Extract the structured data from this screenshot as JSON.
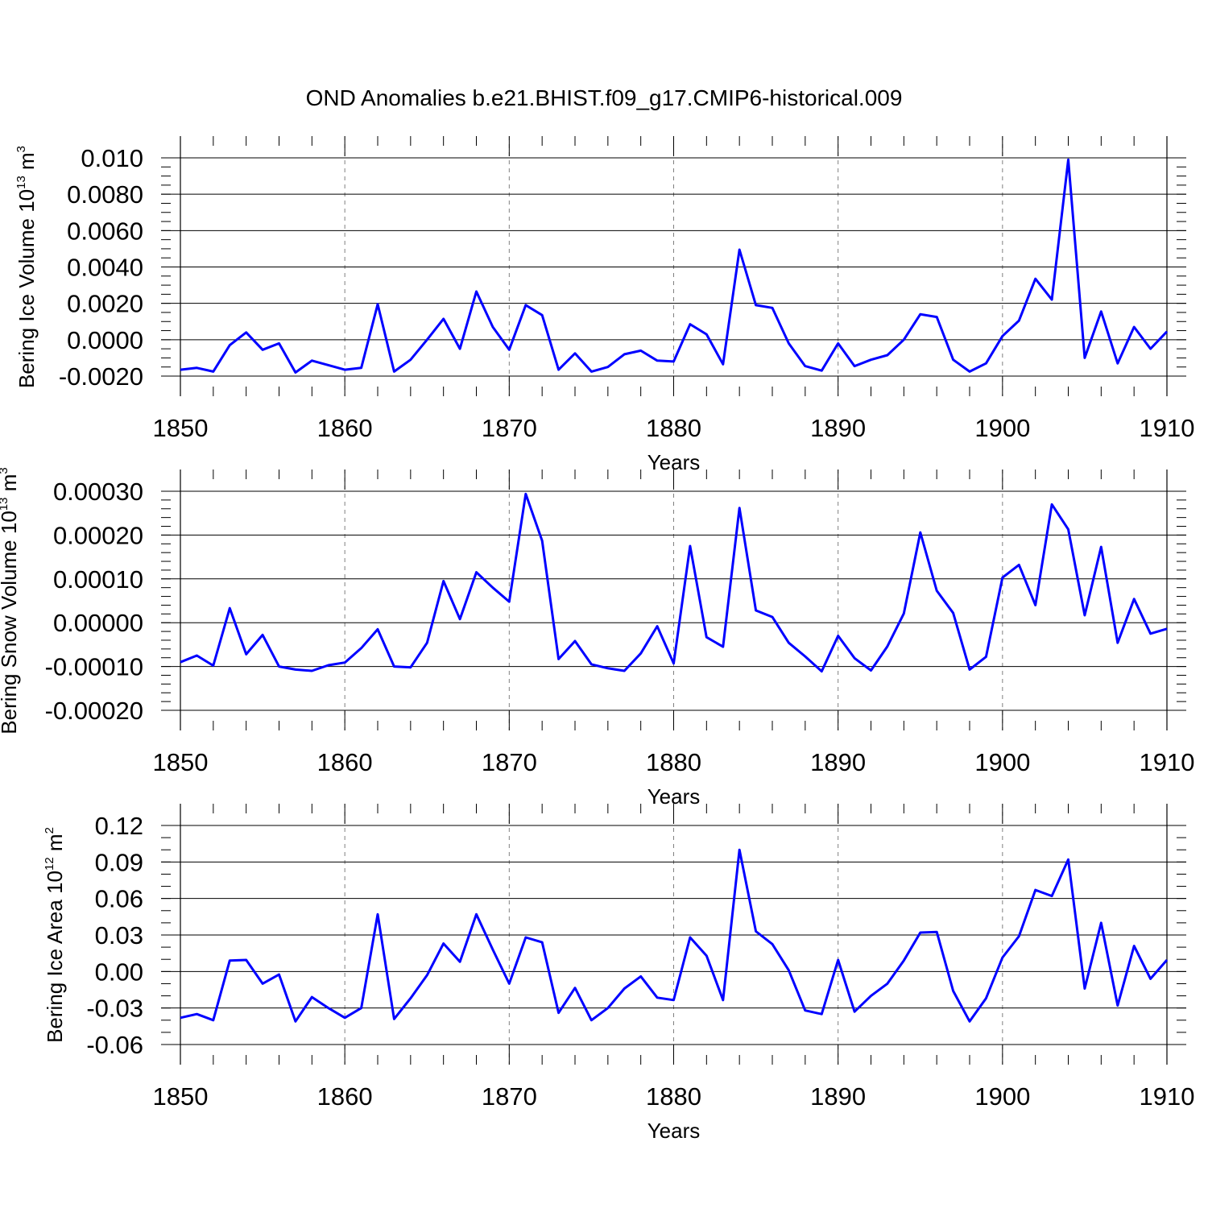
{
  "title": "OND Anomalies b.e21.BHIST.f09_g17.CMIP6-historical.009",
  "colors": {
    "line": "#0000ff",
    "axis": "#000000",
    "grid": "#808080"
  },
  "chart_data": [
    {
      "type": "line",
      "name": "ice-volume",
      "ylabel": {
        "text": "Bering Ice Volume 10",
        "exp": "13",
        "unit": " m",
        "unit_exp": "3"
      },
      "xlabel": "Years",
      "xlim": [
        1850,
        1910
      ],
      "ylim": [
        -0.002,
        0.01
      ],
      "x_ticks": [
        1850,
        1860,
        1870,
        1880,
        1890,
        1900,
        1910
      ],
      "x_tick_labels": [
        "1850",
        "1860",
        "1870",
        "1880",
        "1890",
        "1900",
        "1910"
      ],
      "y_ticks": [
        -0.002,
        0.0,
        0.002,
        0.004,
        0.006,
        0.008,
        0.01
      ],
      "y_tick_labels": [
        "-0.0020",
        "0.0000",
        "0.0020",
        "0.0040",
        "0.0060",
        "0.0080",
        "0.010"
      ],
      "y_minor_step": 0.0005,
      "grid": "dashed vertical",
      "x": [
        1850,
        1851,
        1852,
        1853,
        1854,
        1855,
        1856,
        1857,
        1858,
        1859,
        1860,
        1861,
        1862,
        1863,
        1864,
        1865,
        1866,
        1867,
        1868,
        1869,
        1870,
        1871,
        1872,
        1873,
        1874,
        1875,
        1876,
        1877,
        1878,
        1879,
        1880,
        1881,
        1882,
        1883,
        1884,
        1885,
        1886,
        1887,
        1888,
        1889,
        1890,
        1891,
        1892,
        1893,
        1894,
        1895,
        1896,
        1897,
        1898,
        1899,
        1900,
        1901,
        1902,
        1903,
        1904,
        1905,
        1906,
        1907,
        1908,
        1909,
        1910
      ],
      "values": [
        -0.00165,
        -0.00155,
        -0.00175,
        -0.0003,
        0.0004,
        -0.00055,
        -0.0002,
        -0.0018,
        -0.00115,
        -0.0014,
        -0.00165,
        -0.00155,
        0.00195,
        -0.00175,
        -0.0011,
        0.0,
        0.00115,
        -0.0005,
        0.00265,
        0.0007,
        -0.00055,
        0.0019,
        0.00135,
        -0.00165,
        -0.00075,
        -0.00175,
        -0.0015,
        -0.0008,
        -0.0006,
        -0.00115,
        -0.0012,
        0.00085,
        0.0003,
        -0.00135,
        0.00495,
        0.0019,
        0.00175,
        -0.0002,
        -0.00145,
        -0.0017,
        -0.0002,
        -0.00145,
        -0.0011,
        -0.00085,
        0.0,
        0.0014,
        0.00125,
        -0.0011,
        -0.00175,
        -0.0013,
        0.0002,
        0.00105,
        0.00335,
        0.0022,
        0.0099,
        -0.001,
        0.00155,
        -0.0013,
        0.0007,
        -0.0005,
        0.00045
      ]
    },
    {
      "type": "line",
      "name": "snow-volume",
      "ylabel": {
        "text": "Bering Snow Volume 10",
        "exp": "13",
        "unit": " m",
        "unit_exp": "3"
      },
      "xlabel": "Years",
      "xlim": [
        1850,
        1910
      ],
      "ylim": [
        -0.0002,
        0.0003
      ],
      "x_ticks": [
        1850,
        1860,
        1870,
        1880,
        1890,
        1900,
        1910
      ],
      "x_tick_labels": [
        "1850",
        "1860",
        "1870",
        "1880",
        "1890",
        "1900",
        "1910"
      ],
      "y_ticks": [
        -0.0002,
        -0.0001,
        0.0,
        0.0001,
        0.0002,
        0.0003
      ],
      "y_tick_labels": [
        "-0.00020",
        "-0.00010",
        "0.00000",
        "0.00010",
        "0.00020",
        "0.00030"
      ],
      "y_minor_step": 2e-05,
      "grid": "dashed vertical",
      "x": [
        1850,
        1851,
        1852,
        1853,
        1854,
        1855,
        1856,
        1857,
        1858,
        1859,
        1860,
        1861,
        1862,
        1863,
        1864,
        1865,
        1866,
        1867,
        1868,
        1869,
        1870,
        1871,
        1872,
        1873,
        1874,
        1875,
        1876,
        1877,
        1878,
        1879,
        1880,
        1881,
        1882,
        1883,
        1884,
        1885,
        1886,
        1887,
        1888,
        1889,
        1890,
        1891,
        1892,
        1893,
        1894,
        1895,
        1896,
        1897,
        1898,
        1899,
        1900,
        1901,
        1902,
        1903,
        1904,
        1905,
        1906,
        1907,
        1908,
        1909,
        1910
      ],
      "values": [
        -9e-05,
        -7.5e-05,
        -9.8e-05,
        3.3e-05,
        -7.2e-05,
        -2.8e-05,
        -0.0001,
        -0.000107,
        -0.00011,
        -9.7e-05,
        -9.1e-05,
        -5.8e-05,
        -1.5e-05,
        -0.0001,
        -0.000102,
        -4.6e-05,
        9.5e-05,
        8e-06,
        0.000115,
        8e-05,
        4.8e-05,
        0.000294,
        0.000187,
        -8.3e-05,
        -4.2e-05,
        -9.5e-05,
        -0.000104,
        -0.00011,
        -7e-05,
        -8e-06,
        -9.3e-05,
        0.000175,
        -3.3e-05,
        -5.5e-05,
        0.000262,
        2.8e-05,
        1.3e-05,
        -4.6e-05,
        -7.7e-05,
        -0.000111,
        -3e-05,
        -8.1e-05,
        -0.000109,
        -5.4e-05,
        2.1e-05,
        0.000206,
        7.3e-05,
        2.2e-05,
        -0.000107,
        -7.8e-05,
        0.000103,
        0.000132,
        4e-05,
        0.00027,
        0.000213,
        1.7e-05,
        0.000173,
        -4.6e-05,
        5.4e-05,
        -2.5e-05,
        -1.4e-05
      ]
    },
    {
      "type": "line",
      "name": "ice-area",
      "ylabel": {
        "text": "Bering Ice Area 10",
        "exp": "12",
        "unit": " m",
        "unit_exp": "2"
      },
      "xlabel": "Years",
      "xlim": [
        1850,
        1910
      ],
      "ylim": [
        -0.06,
        0.12
      ],
      "x_ticks": [
        1850,
        1860,
        1870,
        1880,
        1890,
        1900,
        1910
      ],
      "x_tick_labels": [
        "1850",
        "1860",
        "1870",
        "1880",
        "1890",
        "1900",
        "1910"
      ],
      "y_ticks": [
        -0.06,
        -0.03,
        0.0,
        0.03,
        0.06,
        0.09,
        0.12
      ],
      "y_tick_labels": [
        "-0.06",
        "-0.03",
        "0.00",
        "0.03",
        "0.06",
        "0.09",
        "0.12"
      ],
      "y_minor_step": 0.01,
      "grid": "dashed vertical",
      "x": [
        1850,
        1851,
        1852,
        1853,
        1854,
        1855,
        1856,
        1857,
        1858,
        1859,
        1860,
        1861,
        1862,
        1863,
        1864,
        1865,
        1866,
        1867,
        1868,
        1869,
        1870,
        1871,
        1872,
        1873,
        1874,
        1875,
        1876,
        1877,
        1878,
        1879,
        1880,
        1881,
        1882,
        1883,
        1884,
        1885,
        1886,
        1887,
        1888,
        1889,
        1890,
        1891,
        1892,
        1893,
        1894,
        1895,
        1896,
        1897,
        1898,
        1899,
        1900,
        1901,
        1902,
        1903,
        1904,
        1905,
        1906,
        1907,
        1908,
        1909,
        1910
      ],
      "values": [
        -0.038,
        -0.035,
        -0.04,
        0.009,
        0.0095,
        -0.01,
        -0.0025,
        -0.041,
        -0.021,
        -0.03,
        -0.038,
        -0.03,
        0.047,
        -0.039,
        -0.022,
        -0.003,
        0.023,
        0.008,
        0.047,
        0.018,
        -0.01,
        0.028,
        0.024,
        -0.034,
        -0.0135,
        -0.04,
        -0.03,
        -0.014,
        -0.004,
        -0.0215,
        -0.0235,
        0.028,
        0.013,
        -0.0235,
        0.1,
        0.033,
        0.0225,
        0.001,
        -0.032,
        -0.035,
        0.0095,
        -0.033,
        -0.02,
        -0.01,
        0.009,
        0.032,
        0.0325,
        -0.016,
        -0.041,
        -0.022,
        0.0115,
        0.029,
        0.067,
        0.062,
        0.092,
        -0.014,
        0.04,
        -0.028,
        0.021,
        -0.006,
        0.0095
      ]
    }
  ]
}
